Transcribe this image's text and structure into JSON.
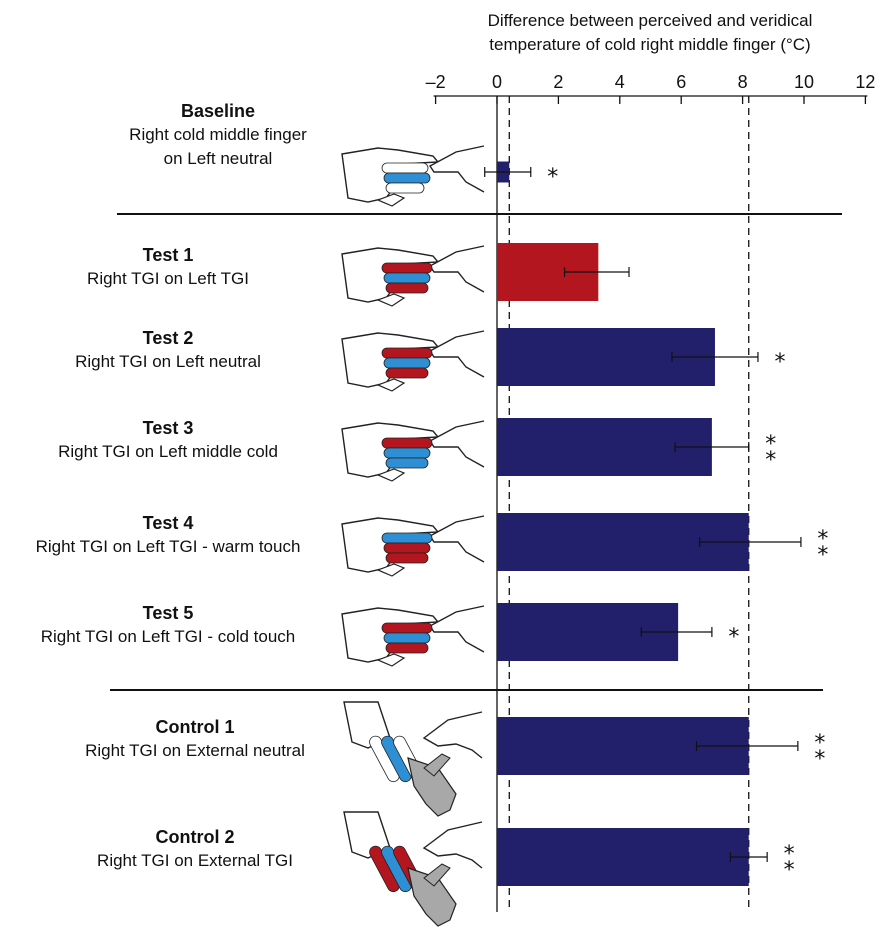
{
  "chart_data": {
    "type": "bar",
    "orientation": "horizontal",
    "title": "",
    "xlabel_line1": "Difference between perceived and veridical",
    "xlabel_line2": "temperature of cold right middle finger (°C)",
    "xlim": [
      -2,
      12
    ],
    "xticks": [
      "–2",
      "0",
      "2",
      "4",
      "6",
      "8",
      "10",
      "12"
    ],
    "xtick_values": [
      -2,
      0,
      2,
      4,
      6,
      8,
      10,
      12
    ],
    "reference_lines": [
      0.4,
      8.2
    ],
    "bars": [
      {
        "title": "Baseline",
        "subtitle_lines": [
          "Right cold middle finger",
          "on Left neutral"
        ],
        "value": 0.4,
        "err_low": -0.4,
        "err_high": 1.1,
        "color": "#23206b",
        "significance": "*"
      },
      {
        "title": "Test 1",
        "subtitle_lines": [
          "Right TGI on Left TGI"
        ],
        "value": 3.3,
        "err_low": 2.2,
        "err_high": 4.3,
        "color": "#b3161e",
        "significance": ""
      },
      {
        "title": "Test 2",
        "subtitle_lines": [
          "Right TGI on Left neutral"
        ],
        "value": 7.1,
        "err_low": 5.7,
        "err_high": 8.5,
        "color": "#23206b",
        "significance": "*"
      },
      {
        "title": "Test 3",
        "subtitle_lines": [
          "Right TGI on Left middle cold"
        ],
        "value": 7.0,
        "err_low": 5.8,
        "err_high": 8.2,
        "color": "#23206b",
        "significance": "**"
      },
      {
        "title": "Test 4",
        "subtitle_lines": [
          "Right TGI on Left TGI - warm touch"
        ],
        "value": 8.2,
        "err_low": 6.6,
        "err_high": 9.9,
        "color": "#23206b",
        "significance": "**"
      },
      {
        "title": "Test 5",
        "subtitle_lines": [
          "Right TGI on Left TGI - cold touch"
        ],
        "value": 5.9,
        "err_low": 4.7,
        "err_high": 7.0,
        "color": "#23206b",
        "significance": "*"
      },
      {
        "title": "Control 1",
        "subtitle_lines": [
          "Right TGI on External neutral"
        ],
        "value": 8.2,
        "err_low": 6.5,
        "err_high": 9.8,
        "color": "#23206b",
        "significance": "**"
      },
      {
        "title": "Control 2",
        "subtitle_lines": [
          "Right TGI on External TGI"
        ],
        "value": 8.2,
        "err_low": 7.6,
        "err_high": 8.8,
        "color": "#23206b",
        "significance": "**"
      }
    ],
    "colors": {
      "bar": "#23206b",
      "highlight": "#b3161e",
      "cold": "#2f8fd4",
      "warm": "#b3161e",
      "external": "#a8a8a8"
    },
    "grid": false,
    "legend": "none"
  },
  "illustration": {
    "icon": "hands-icon",
    "variants": [
      "baseline",
      "tgi",
      "tgi",
      "tgi-cold",
      "tgi-warm-touch",
      "tgi-cold-touch",
      "external",
      "external-tgi"
    ]
  }
}
